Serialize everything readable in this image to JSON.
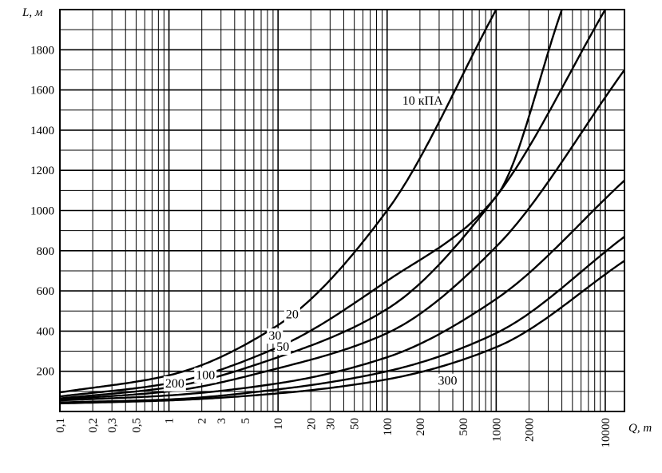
{
  "chart_data": {
    "type": "line",
    "xlabel": "Q, т",
    "ylabel": "L, м",
    "x_scale": "log",
    "xlim": [
      0.1,
      15000
    ],
    "ylim": [
      0,
      2000
    ],
    "grid": true,
    "x_tick_labels": [
      "0,1",
      "0,2",
      "0,3",
      "0,5",
      "1",
      "2",
      "3",
      "5",
      "10",
      "20",
      "30",
      "50",
      "100",
      "200",
      "500",
      "1000",
      "2000",
      "10000"
    ],
    "x_tick_values": [
      0.1,
      0.2,
      0.3,
      0.5,
      1,
      2,
      3,
      5,
      10,
      20,
      30,
      50,
      100,
      200,
      500,
      1000,
      2000,
      10000
    ],
    "y_ticks": [
      200,
      400,
      600,
      800,
      1000,
      1200,
      1400,
      1600,
      1800
    ],
    "series": [
      {
        "name": "10 кПА",
        "x": [
          0.1,
          1,
          10,
          100,
          1000
        ],
        "y": [
          95,
          180,
          430,
          1000,
          2000
        ]
      },
      {
        "name": "20",
        "x": [
          0.1,
          1,
          10,
          100,
          1000,
          4000
        ],
        "y": [
          75,
          140,
          320,
          650,
          1070,
          2000
        ]
      },
      {
        "name": "30",
        "x": [
          0.1,
          1,
          10,
          100,
          1000,
          10000
        ],
        "y": [
          65,
          120,
          270,
          510,
          1070,
          2000
        ]
      },
      {
        "name": "50",
        "x": [
          0.1,
          1,
          10,
          100,
          1000,
          15000
        ],
        "y": [
          60,
          100,
          215,
          390,
          820,
          1700
        ]
      },
      {
        "name": "100",
        "x": [
          0.1,
          1,
          10,
          100,
          1000,
          15000
        ],
        "y": [
          55,
          80,
          140,
          270,
          560,
          1150
        ]
      },
      {
        "name": "200",
        "x": [
          0.1,
          1,
          10,
          100,
          1000,
          15000
        ],
        "y": [
          45,
          60,
          110,
          200,
          390,
          870
        ]
      },
      {
        "name": "300",
        "x": [
          0.1,
          1,
          10,
          100,
          1000,
          15000
        ],
        "y": [
          40,
          55,
          90,
          160,
          320,
          750
        ]
      }
    ]
  }
}
